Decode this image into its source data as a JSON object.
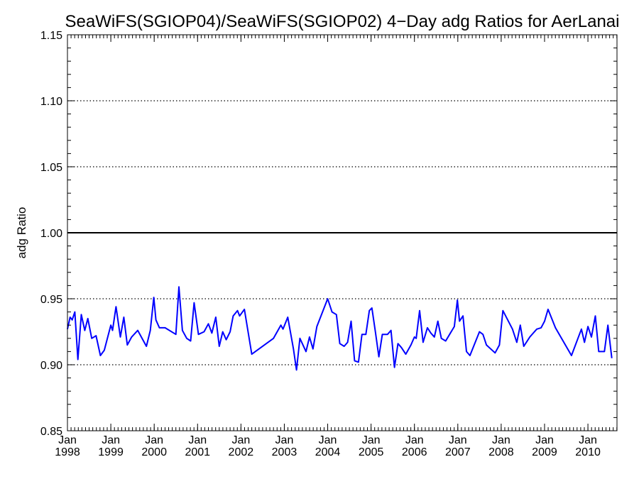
{
  "chart_data": {
    "type": "line",
    "title": "SeaWiFS(SGIOP04)/SeaWiFS(SGIOP02) 4−Day adg Ratios for AerLanai",
    "xlabel": "",
    "ylabel": "adg Ratio",
    "ylim": [
      0.85,
      1.15
    ],
    "xlim": [
      1998.0,
      2010.67
    ],
    "y_ticks": [
      "0.85",
      "0.90",
      "0.95",
      "1.00",
      "1.05",
      "1.10",
      "1.15"
    ],
    "y_tick_values": [
      0.85,
      0.9,
      0.95,
      1.0,
      1.05,
      1.1,
      1.15
    ],
    "x_ticks": [
      {
        "month": "Jan",
        "year": "1998",
        "value": 1998
      },
      {
        "month": "Jan",
        "year": "1999",
        "value": 1999
      },
      {
        "month": "Jan",
        "year": "2000",
        "value": 2000
      },
      {
        "month": "Jan",
        "year": "2001",
        "value": 2001
      },
      {
        "month": "Jan",
        "year": "2002",
        "value": 2002
      },
      {
        "month": "Jan",
        "year": "2003",
        "value": 2003
      },
      {
        "month": "Jan",
        "year": "2004",
        "value": 2004
      },
      {
        "month": "Jan",
        "year": "2005",
        "value": 2005
      },
      {
        "month": "Jan",
        "year": "2006",
        "value": 2006
      },
      {
        "month": "Jan",
        "year": "2007",
        "value": 2007
      },
      {
        "month": "Jan",
        "year": "2008",
        "value": 2008
      },
      {
        "month": "Jan",
        "year": "2009",
        "value": 2009
      },
      {
        "month": "Jan",
        "year": "2010",
        "value": 2010
      }
    ],
    "grid_y_dotted": [
      0.9,
      0.95,
      1.05,
      1.1
    ],
    "reference_line": 1.0,
    "series": [
      {
        "color": "#0000ff",
        "points": [
          [
            1998.0,
            0.927
          ],
          [
            1998.06,
            0.936
          ],
          [
            1998.11,
            0.934
          ],
          [
            1998.17,
            0.94
          ],
          [
            1998.24,
            0.904
          ],
          [
            1998.32,
            0.938
          ],
          [
            1998.4,
            0.926
          ],
          [
            1998.47,
            0.935
          ],
          [
            1998.56,
            0.92
          ],
          [
            1998.66,
            0.922
          ],
          [
            1998.76,
            0.907
          ],
          [
            1998.85,
            0.911
          ],
          [
            1999.0,
            0.93
          ],
          [
            1999.04,
            0.926
          ],
          [
            1999.12,
            0.944
          ],
          [
            1999.22,
            0.921
          ],
          [
            1999.3,
            0.936
          ],
          [
            1999.38,
            0.915
          ],
          [
            1999.48,
            0.921
          ],
          [
            1999.62,
            0.926
          ],
          [
            1999.82,
            0.914
          ],
          [
            1999.91,
            0.926
          ],
          [
            1999.99,
            0.951
          ],
          [
            2000.04,
            0.934
          ],
          [
            2000.12,
            0.928
          ],
          [
            2000.25,
            0.928
          ],
          [
            2000.5,
            0.923
          ],
          [
            2000.57,
            0.959
          ],
          [
            2000.65,
            0.926
          ],
          [
            2000.75,
            0.92
          ],
          [
            2000.84,
            0.918
          ],
          [
            2000.92,
            0.947
          ],
          [
            2001.02,
            0.923
          ],
          [
            2001.15,
            0.925
          ],
          [
            2001.25,
            0.931
          ],
          [
            2001.33,
            0.924
          ],
          [
            2001.42,
            0.936
          ],
          [
            2001.5,
            0.914
          ],
          [
            2001.58,
            0.925
          ],
          [
            2001.66,
            0.919
          ],
          [
            2001.75,
            0.925
          ],
          [
            2001.82,
            0.937
          ],
          [
            2001.92,
            0.941
          ],
          [
            2001.97,
            0.937
          ],
          [
            2002.08,
            0.942
          ],
          [
            2002.25,
            0.908
          ],
          [
            2002.75,
            0.92
          ],
          [
            2002.92,
            0.93
          ],
          [
            2002.97,
            0.927
          ],
          [
            2003.08,
            0.936
          ],
          [
            2003.21,
            0.912
          ],
          [
            2003.28,
            0.896
          ],
          [
            2003.36,
            0.92
          ],
          [
            2003.5,
            0.91
          ],
          [
            2003.58,
            0.921
          ],
          [
            2003.66,
            0.912
          ],
          [
            2003.75,
            0.929
          ],
          [
            2004.0,
            0.95
          ],
          [
            2004.1,
            0.94
          ],
          [
            2004.2,
            0.938
          ],
          [
            2004.28,
            0.916
          ],
          [
            2004.38,
            0.914
          ],
          [
            2004.46,
            0.917
          ],
          [
            2004.54,
            0.933
          ],
          [
            2004.62,
            0.903
          ],
          [
            2004.71,
            0.902
          ],
          [
            2004.79,
            0.923
          ],
          [
            2004.88,
            0.923
          ],
          [
            2004.96,
            0.941
          ],
          [
            2005.02,
            0.943
          ],
          [
            2005.1,
            0.925
          ],
          [
            2005.18,
            0.906
          ],
          [
            2005.26,
            0.923
          ],
          [
            2005.38,
            0.923
          ],
          [
            2005.46,
            0.926
          ],
          [
            2005.54,
            0.898
          ],
          [
            2005.62,
            0.916
          ],
          [
            2005.7,
            0.913
          ],
          [
            2005.8,
            0.908
          ],
          [
            2005.92,
            0.915
          ],
          [
            2006.0,
            0.921
          ],
          [
            2006.04,
            0.92
          ],
          [
            2006.12,
            0.941
          ],
          [
            2006.2,
            0.917
          ],
          [
            2006.3,
            0.928
          ],
          [
            2006.38,
            0.924
          ],
          [
            2006.46,
            0.921
          ],
          [
            2006.54,
            0.933
          ],
          [
            2006.62,
            0.92
          ],
          [
            2006.72,
            0.918
          ],
          [
            2006.92,
            0.929
          ],
          [
            2006.99,
            0.949
          ],
          [
            2007.04,
            0.933
          ],
          [
            2007.12,
            0.937
          ],
          [
            2007.2,
            0.91
          ],
          [
            2007.28,
            0.907
          ],
          [
            2007.5,
            0.925
          ],
          [
            2007.58,
            0.923
          ],
          [
            2007.66,
            0.915
          ],
          [
            2007.86,
            0.909
          ],
          [
            2007.96,
            0.915
          ],
          [
            2008.04,
            0.941
          ],
          [
            2008.26,
            0.927
          ],
          [
            2008.36,
            0.917
          ],
          [
            2008.44,
            0.93
          ],
          [
            2008.52,
            0.914
          ],
          [
            2008.66,
            0.921
          ],
          [
            2008.82,
            0.927
          ],
          [
            2008.92,
            0.928
          ],
          [
            2009.0,
            0.933
          ],
          [
            2009.08,
            0.942
          ],
          [
            2009.25,
            0.928
          ],
          [
            2009.62,
            0.907
          ],
          [
            2009.85,
            0.927
          ],
          [
            2009.92,
            0.917
          ],
          [
            2010.0,
            0.929
          ],
          [
            2010.08,
            0.921
          ],
          [
            2010.17,
            0.937
          ],
          [
            2010.25,
            0.91
          ],
          [
            2010.38,
            0.91
          ],
          [
            2010.46,
            0.93
          ],
          [
            2010.55,
            0.905
          ]
        ]
      }
    ]
  }
}
